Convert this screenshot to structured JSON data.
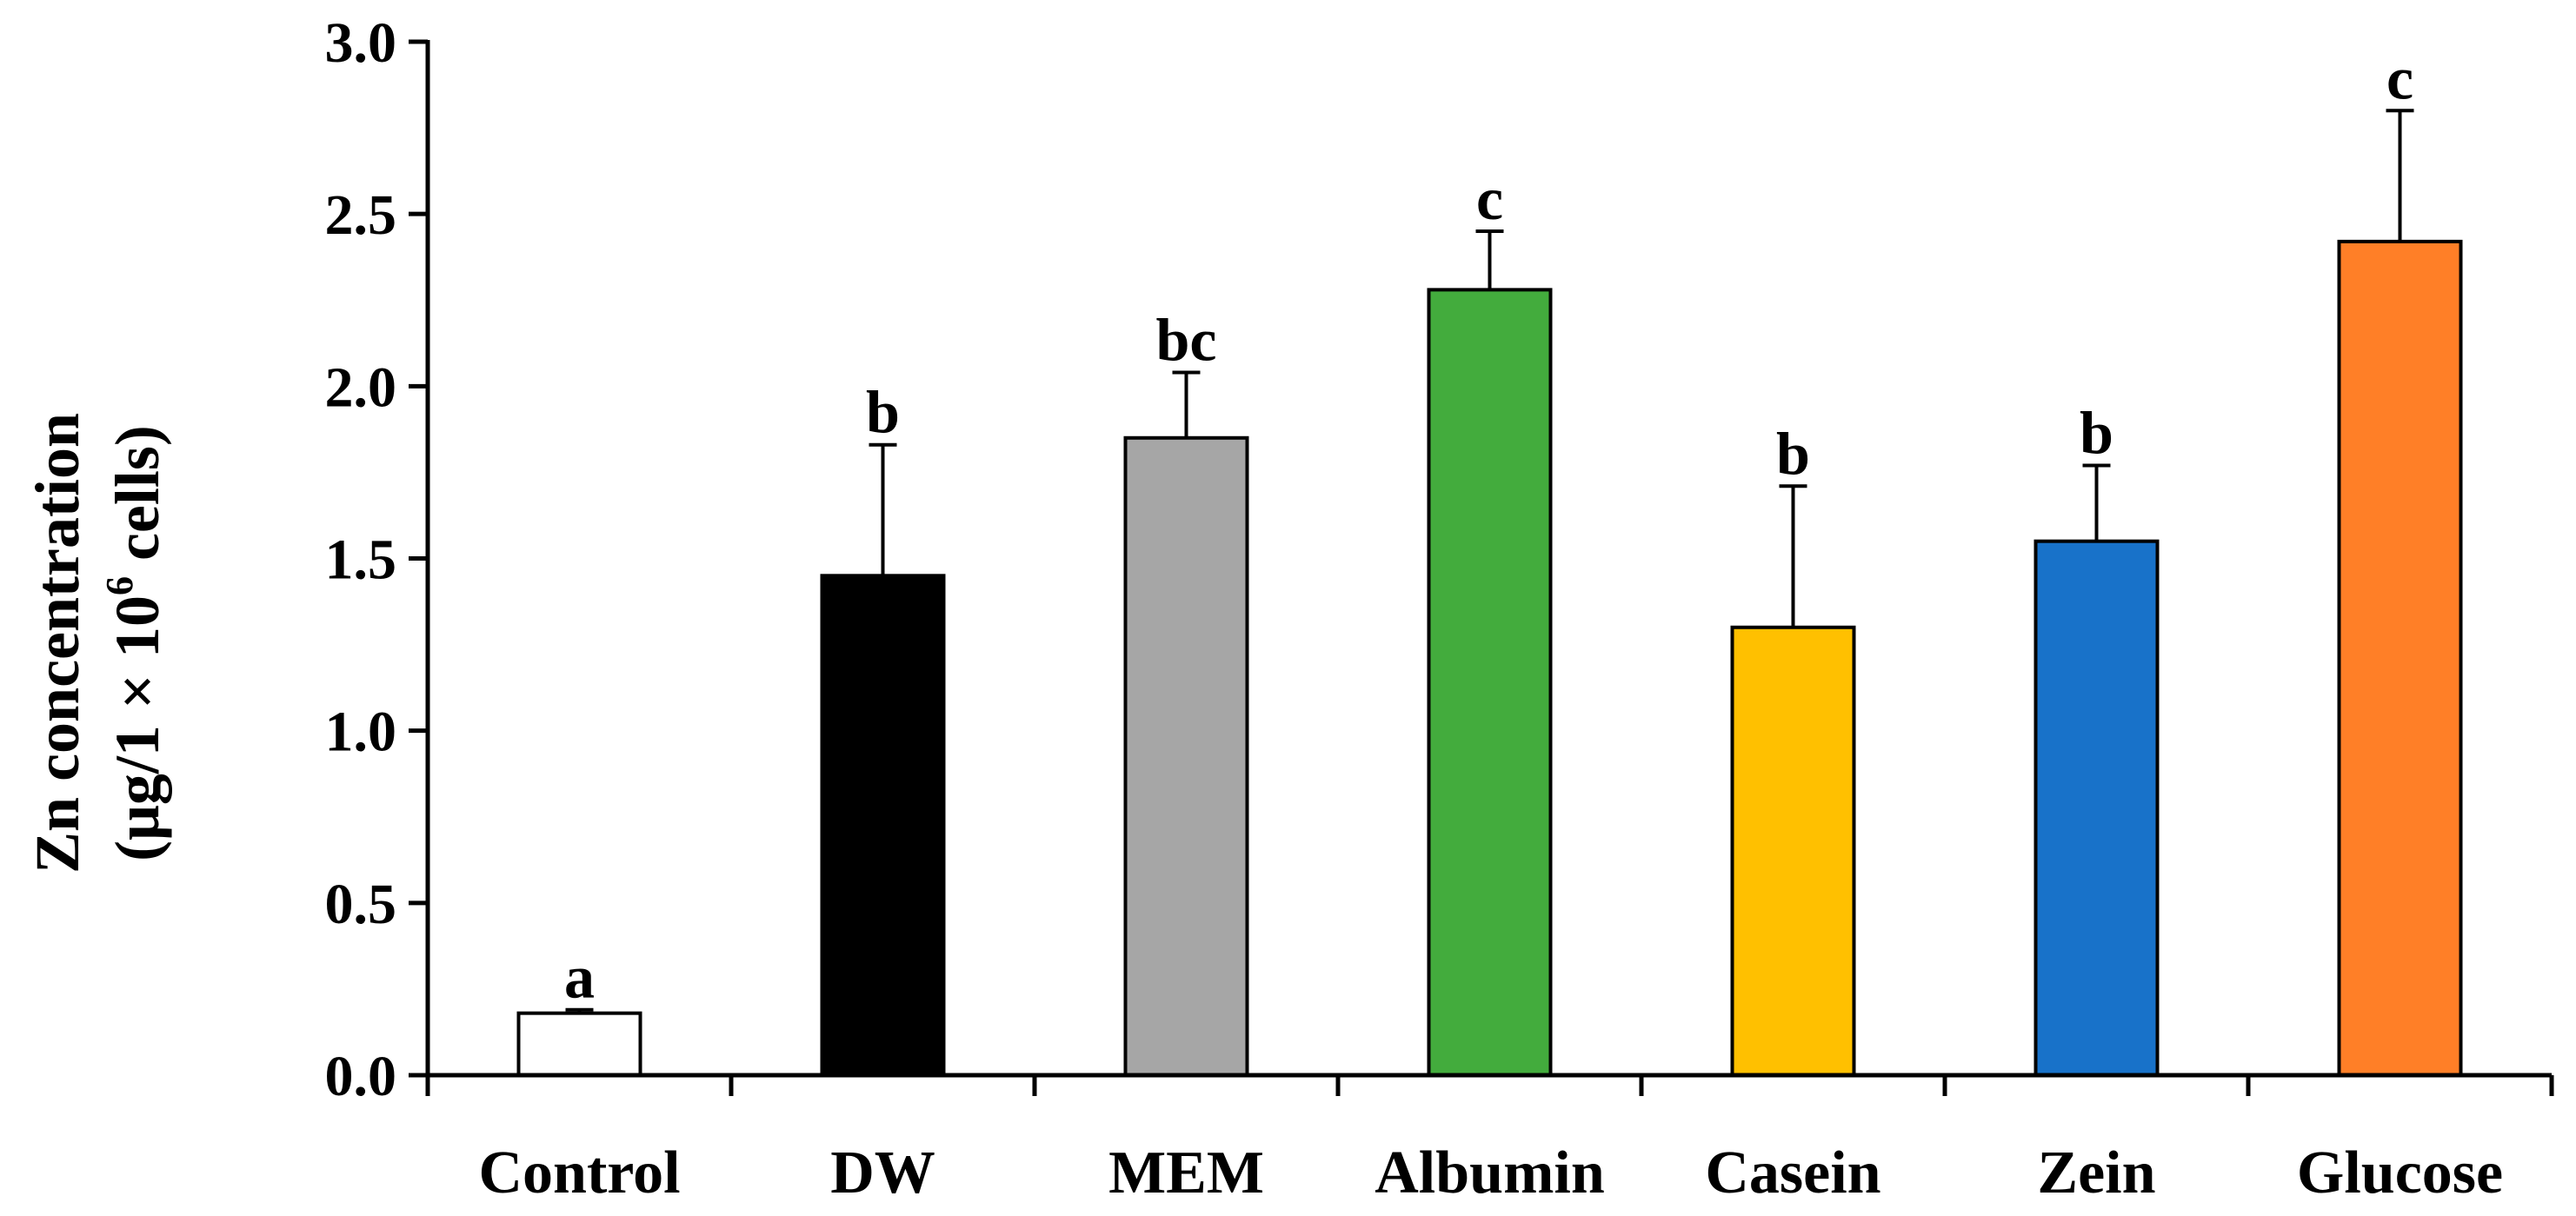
{
  "chart_data": {
    "type": "bar",
    "title": "",
    "xlabel": "",
    "ylabel_line1": "Zn concentration",
    "ylabel_line2_prefix": "(μg/1 × 10",
    "ylabel_line2_sup": "6",
    "ylabel_line2_suffix": " cells)",
    "ylim": [
      0,
      3.0
    ],
    "yticks": [
      "0.0",
      "0.5",
      "1.0",
      "1.5",
      "2.0",
      "2.5",
      "3.0"
    ],
    "ytick_values": [
      0,
      0.5,
      1.0,
      1.5,
      2.0,
      2.5,
      3.0
    ],
    "categories": [
      "Control",
      "DW",
      "MEM",
      "Albumin",
      "Casein",
      "Zein",
      "Glucose"
    ],
    "values": [
      0.18,
      1.45,
      1.85,
      2.28,
      1.3,
      1.55,
      2.42
    ],
    "errors": [
      0.01,
      0.38,
      0.19,
      0.17,
      0.41,
      0.22,
      0.38
    ],
    "significance": [
      "a",
      "b",
      "bc",
      "c",
      "b",
      "b",
      "c"
    ],
    "colors": [
      "#FFFFFF",
      "#000000",
      "#A6A6A6",
      "#43AC3D",
      "#FFC000",
      "#1872C9",
      "#FF7F27"
    ],
    "grid": false,
    "legend": "none"
  }
}
